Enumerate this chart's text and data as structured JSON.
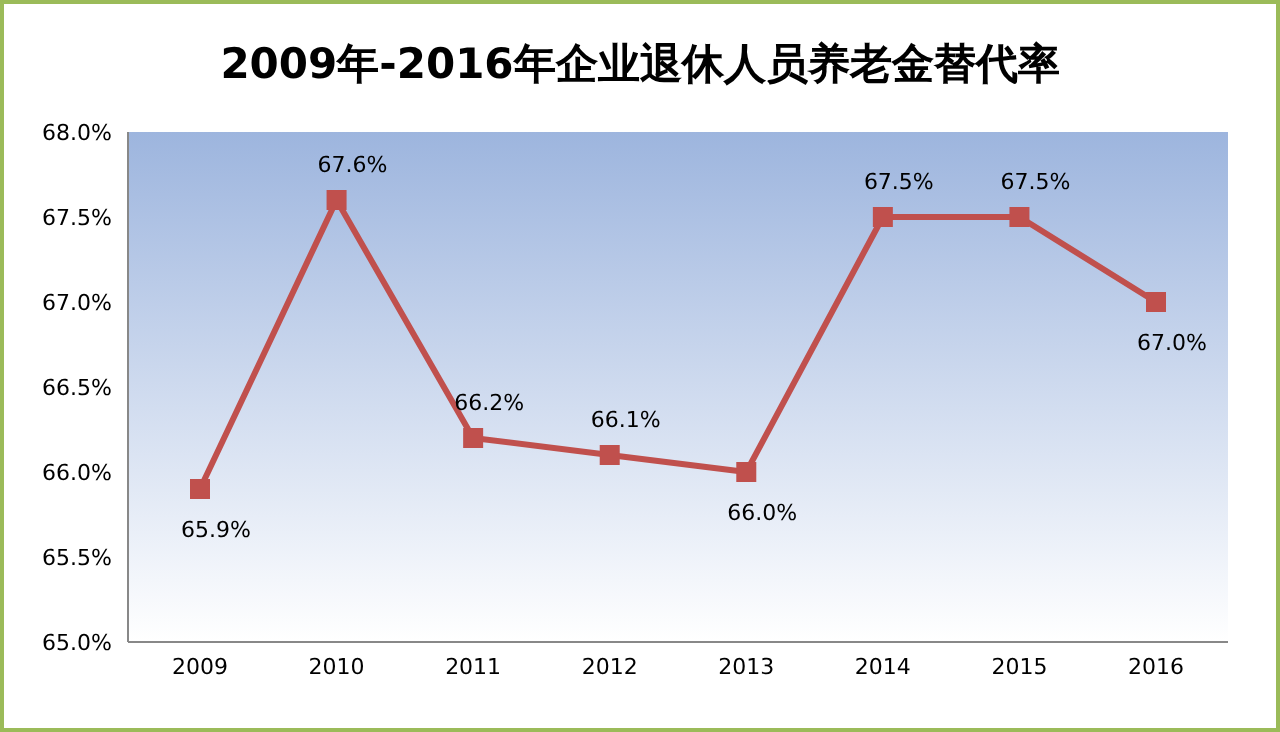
{
  "chart_data": {
    "type": "line",
    "title": "2009年-2016年企业退休人员养老金替代率",
    "categories": [
      "2009",
      "2010",
      "2011",
      "2012",
      "2013",
      "2014",
      "2015",
      "2016"
    ],
    "series": [
      {
        "color": "#c0504d",
        "values": [
          65.9,
          67.6,
          66.2,
          66.1,
          66.0,
          67.5,
          67.5,
          67.0
        ],
        "value_labels": [
          "65.9%",
          "67.6%",
          "66.2%",
          "66.1%",
          "66.0%",
          "67.5%",
          "67.5%",
          "67.0%"
        ]
      }
    ],
    "ylim": [
      65,
      68
    ],
    "yticks": [
      {
        "value": 65,
        "label": "65.0%"
      },
      {
        "value": 65.5,
        "label": "65.5%"
      },
      {
        "value": 66,
        "label": "66.0%"
      },
      {
        "value": 66.5,
        "label": "66.5%"
      },
      {
        "value": 67,
        "label": "67.0%"
      },
      {
        "value": 67.5,
        "label": "67.5%"
      },
      {
        "value": 68,
        "label": "68.0%"
      }
    ],
    "marker": "square"
  }
}
